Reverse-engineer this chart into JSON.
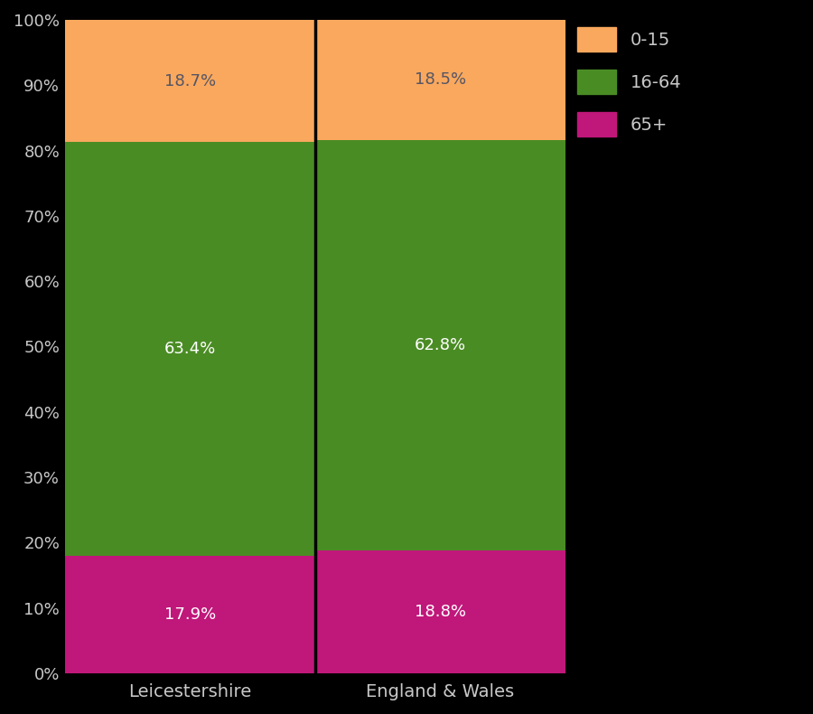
{
  "categories": [
    "Leicestershire",
    "England & Wales"
  ],
  "segments": {
    "65+": [
      17.9,
      18.8
    ],
    "16-64": [
      63.4,
      62.8
    ],
    "0-15": [
      18.7,
      18.5
    ]
  },
  "colors": {
    "0-15": "#f9a85d",
    "16-64": "#4a8c24",
    "65+": "#c0177a"
  },
  "annot_colors": {
    "0-15": "#555566",
    "16-64": "#ffffff",
    "65+": "#ffffff"
  },
  "background_color": "#000000",
  "axes_facecolor": "#000000",
  "text_color": "#c8c8c8",
  "bar_width": 1.0,
  "figsize": [
    9.0,
    7.9
  ],
  "dpi": 100,
  "ylim": [
    0,
    100
  ],
  "yticks": [
    0,
    10,
    20,
    30,
    40,
    50,
    60,
    70,
    80,
    90,
    100
  ],
  "ytick_labels": [
    "0%",
    "10%",
    "20%",
    "30%",
    "40%",
    "50%",
    "60%",
    "70%",
    "80%",
    "90%",
    "100%"
  ],
  "legend_labels": [
    "0-15",
    "16-64",
    "65+"
  ],
  "divider_color": "#000000",
  "label_fontsize": 14,
  "tick_fontsize": 13,
  "annot_fontsize": 13,
  "legend_fontsize": 14,
  "bar_edge_color": "none"
}
